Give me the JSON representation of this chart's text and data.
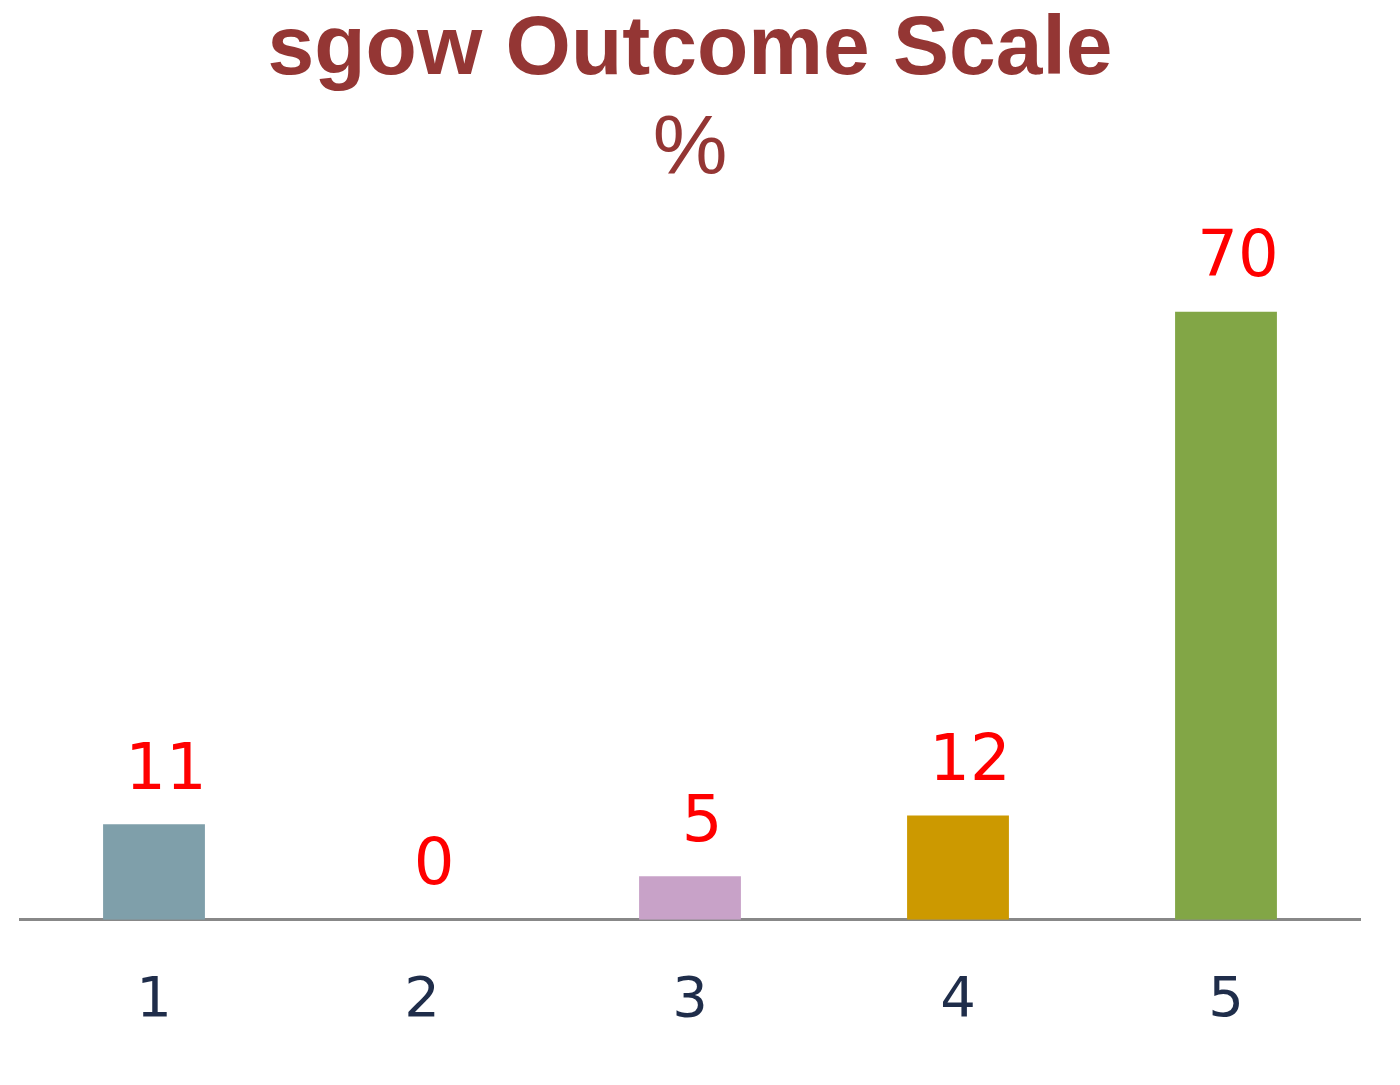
{
  "chart_data": {
    "type": "bar",
    "title": "sgow Outcome Scale",
    "subtitle": "%",
    "categories": [
      "1",
      "2",
      "3",
      "4",
      "5"
    ],
    "values": [
      11,
      0,
      5,
      12,
      70
    ],
    "colors": [
      "#7f9faa",
      "#7f7f7f",
      "#c8a2c8",
      "#cc9900",
      "#82a646"
    ],
    "data_labels": true
  }
}
